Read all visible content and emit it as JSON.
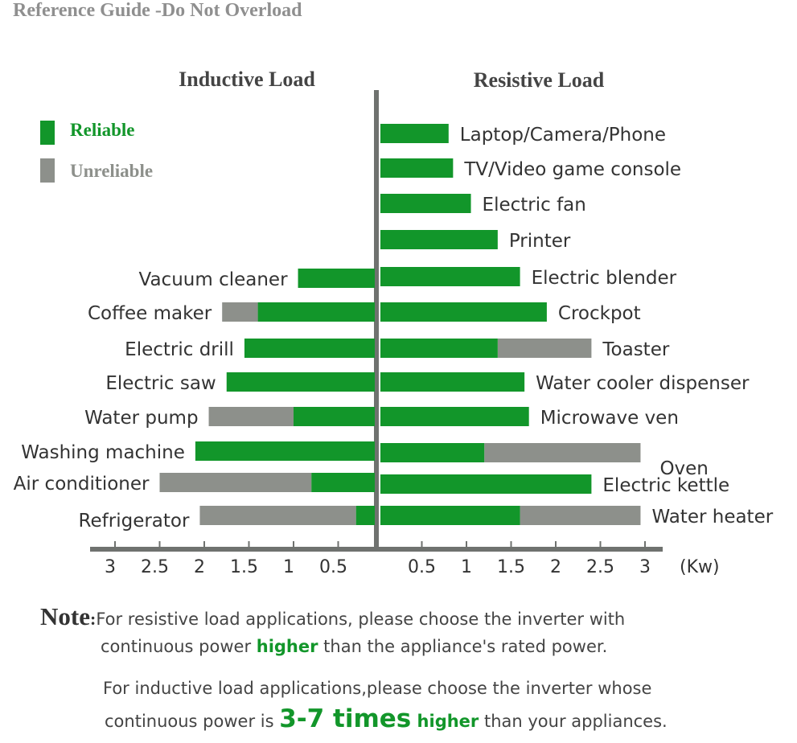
{
  "title": "Reference Guide -Do Not Overload",
  "chart_data": {
    "type": "bar",
    "orientation": "horizontal-diverging",
    "left_title": "Inductive Load",
    "right_title": "Resistive Load",
    "unit": "(Kw)",
    "xlim": [
      0,
      3
    ],
    "ticks_left": [
      "3",
      "2.5",
      "2",
      "1.5",
      "1",
      "0.5"
    ],
    "ticks_right": [
      "0.5",
      "1",
      "1.5",
      "2",
      "2.5",
      "3"
    ],
    "legend": [
      {
        "name": "Reliable",
        "color": "#12962a"
      },
      {
        "name": "Unreliable",
        "color": "#8d908b"
      }
    ],
    "legend_position": "top-left",
    "inductive": [
      {
        "name": "Vacuum cleaner",
        "reliable": 0.95,
        "unreliable_to": null
      },
      {
        "name": "Coffee maker",
        "reliable": 1.4,
        "unreliable_to": 1.8
      },
      {
        "name": "Electric drill",
        "reliable": 1.55,
        "unreliable_to": null
      },
      {
        "name": "Electric saw",
        "reliable": 1.75,
        "unreliable_to": null
      },
      {
        "name": "Water pump",
        "reliable": 1.0,
        "unreliable_to": 1.95
      },
      {
        "name": "Washing machine",
        "reliable": 2.1,
        "unreliable_to": null
      },
      {
        "name": "Air conditioner",
        "reliable": 0.8,
        "unreliable_to": 2.5
      },
      {
        "name": "Refrigerator",
        "reliable": 0.3,
        "unreliable_to": 2.05
      }
    ],
    "resistive": [
      {
        "name": "Laptop/Camera/Phone",
        "reliable": 0.8,
        "unreliable_to": null
      },
      {
        "name": "TV/Video game console",
        "reliable": 0.85,
        "unreliable_to": null
      },
      {
        "name": "Electric fan",
        "reliable": 1.05,
        "unreliable_to": null
      },
      {
        "name": "Printer",
        "reliable": 1.35,
        "unreliable_to": null
      },
      {
        "name": "Electric blender",
        "reliable": 1.6,
        "unreliable_to": null
      },
      {
        "name": "Crockpot",
        "reliable": 1.9,
        "unreliable_to": null
      },
      {
        "name": "Toaster",
        "reliable": 1.35,
        "unreliable_to": 2.4
      },
      {
        "name": "Water cooler dispenser",
        "reliable": 1.65,
        "unreliable_to": null
      },
      {
        "name": "Microwave ven",
        "reliable": 1.7,
        "unreliable_to": null
      },
      {
        "name": "Oven",
        "reliable": 1.2,
        "unreliable_to": 2.95
      },
      {
        "name": "Electric kettle",
        "reliable": 2.4,
        "unreliable_to": null
      },
      {
        "name": "Water heater",
        "reliable": 1.6,
        "unreliable_to": 2.95
      }
    ]
  },
  "note": {
    "label": "Note",
    "colon": ":",
    "line1": "For resistive load applications, please choose the inverter with",
    "line2_a": "continuous power ",
    "line2_b": "higher",
    "line2_c": " than the appliance's rated power.",
    "line3": "For inductive load applications,please choose the inverter whose",
    "line4_a": "continuous power is ",
    "line4_b": "3-7 times",
    "line4_c": " higher",
    "line4_d": " than your appliances."
  }
}
